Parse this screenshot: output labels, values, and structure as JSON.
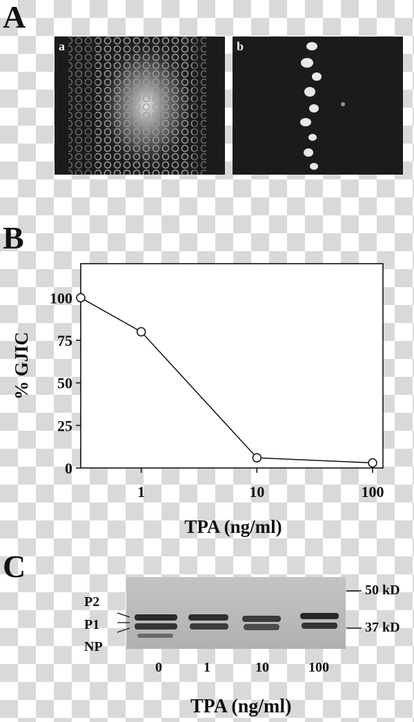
{
  "panels": {
    "A": "A",
    "B": "B",
    "C": "C"
  },
  "panel_a": {
    "image_a_label": "a",
    "image_b_label": "b"
  },
  "chart_data": {
    "type": "line",
    "title": "",
    "xlabel": "TPA (ng/ml)",
    "ylabel": "% GJIC",
    "x_scale": "log",
    "x_ticks": [
      "1",
      "10",
      "100"
    ],
    "y_ticks": [
      "0",
      "25",
      "50",
      "75",
      "100"
    ],
    "ylim": [
      0,
      120
    ],
    "grid": false,
    "series": [
      {
        "points": [
          {
            "x": 0.3,
            "y": 100
          },
          {
            "x": 1,
            "y": 80
          },
          {
            "x": 10,
            "y": 6
          },
          {
            "x": 100,
            "y": 3
          }
        ]
      }
    ]
  },
  "blot": {
    "band_labels": [
      "P2",
      "P1",
      "NP"
    ],
    "markers": [
      "50 kD",
      "37 kD"
    ],
    "lanes": [
      "0",
      "1",
      "10",
      "100"
    ],
    "xlabel": "TPA (ng/ml)"
  }
}
